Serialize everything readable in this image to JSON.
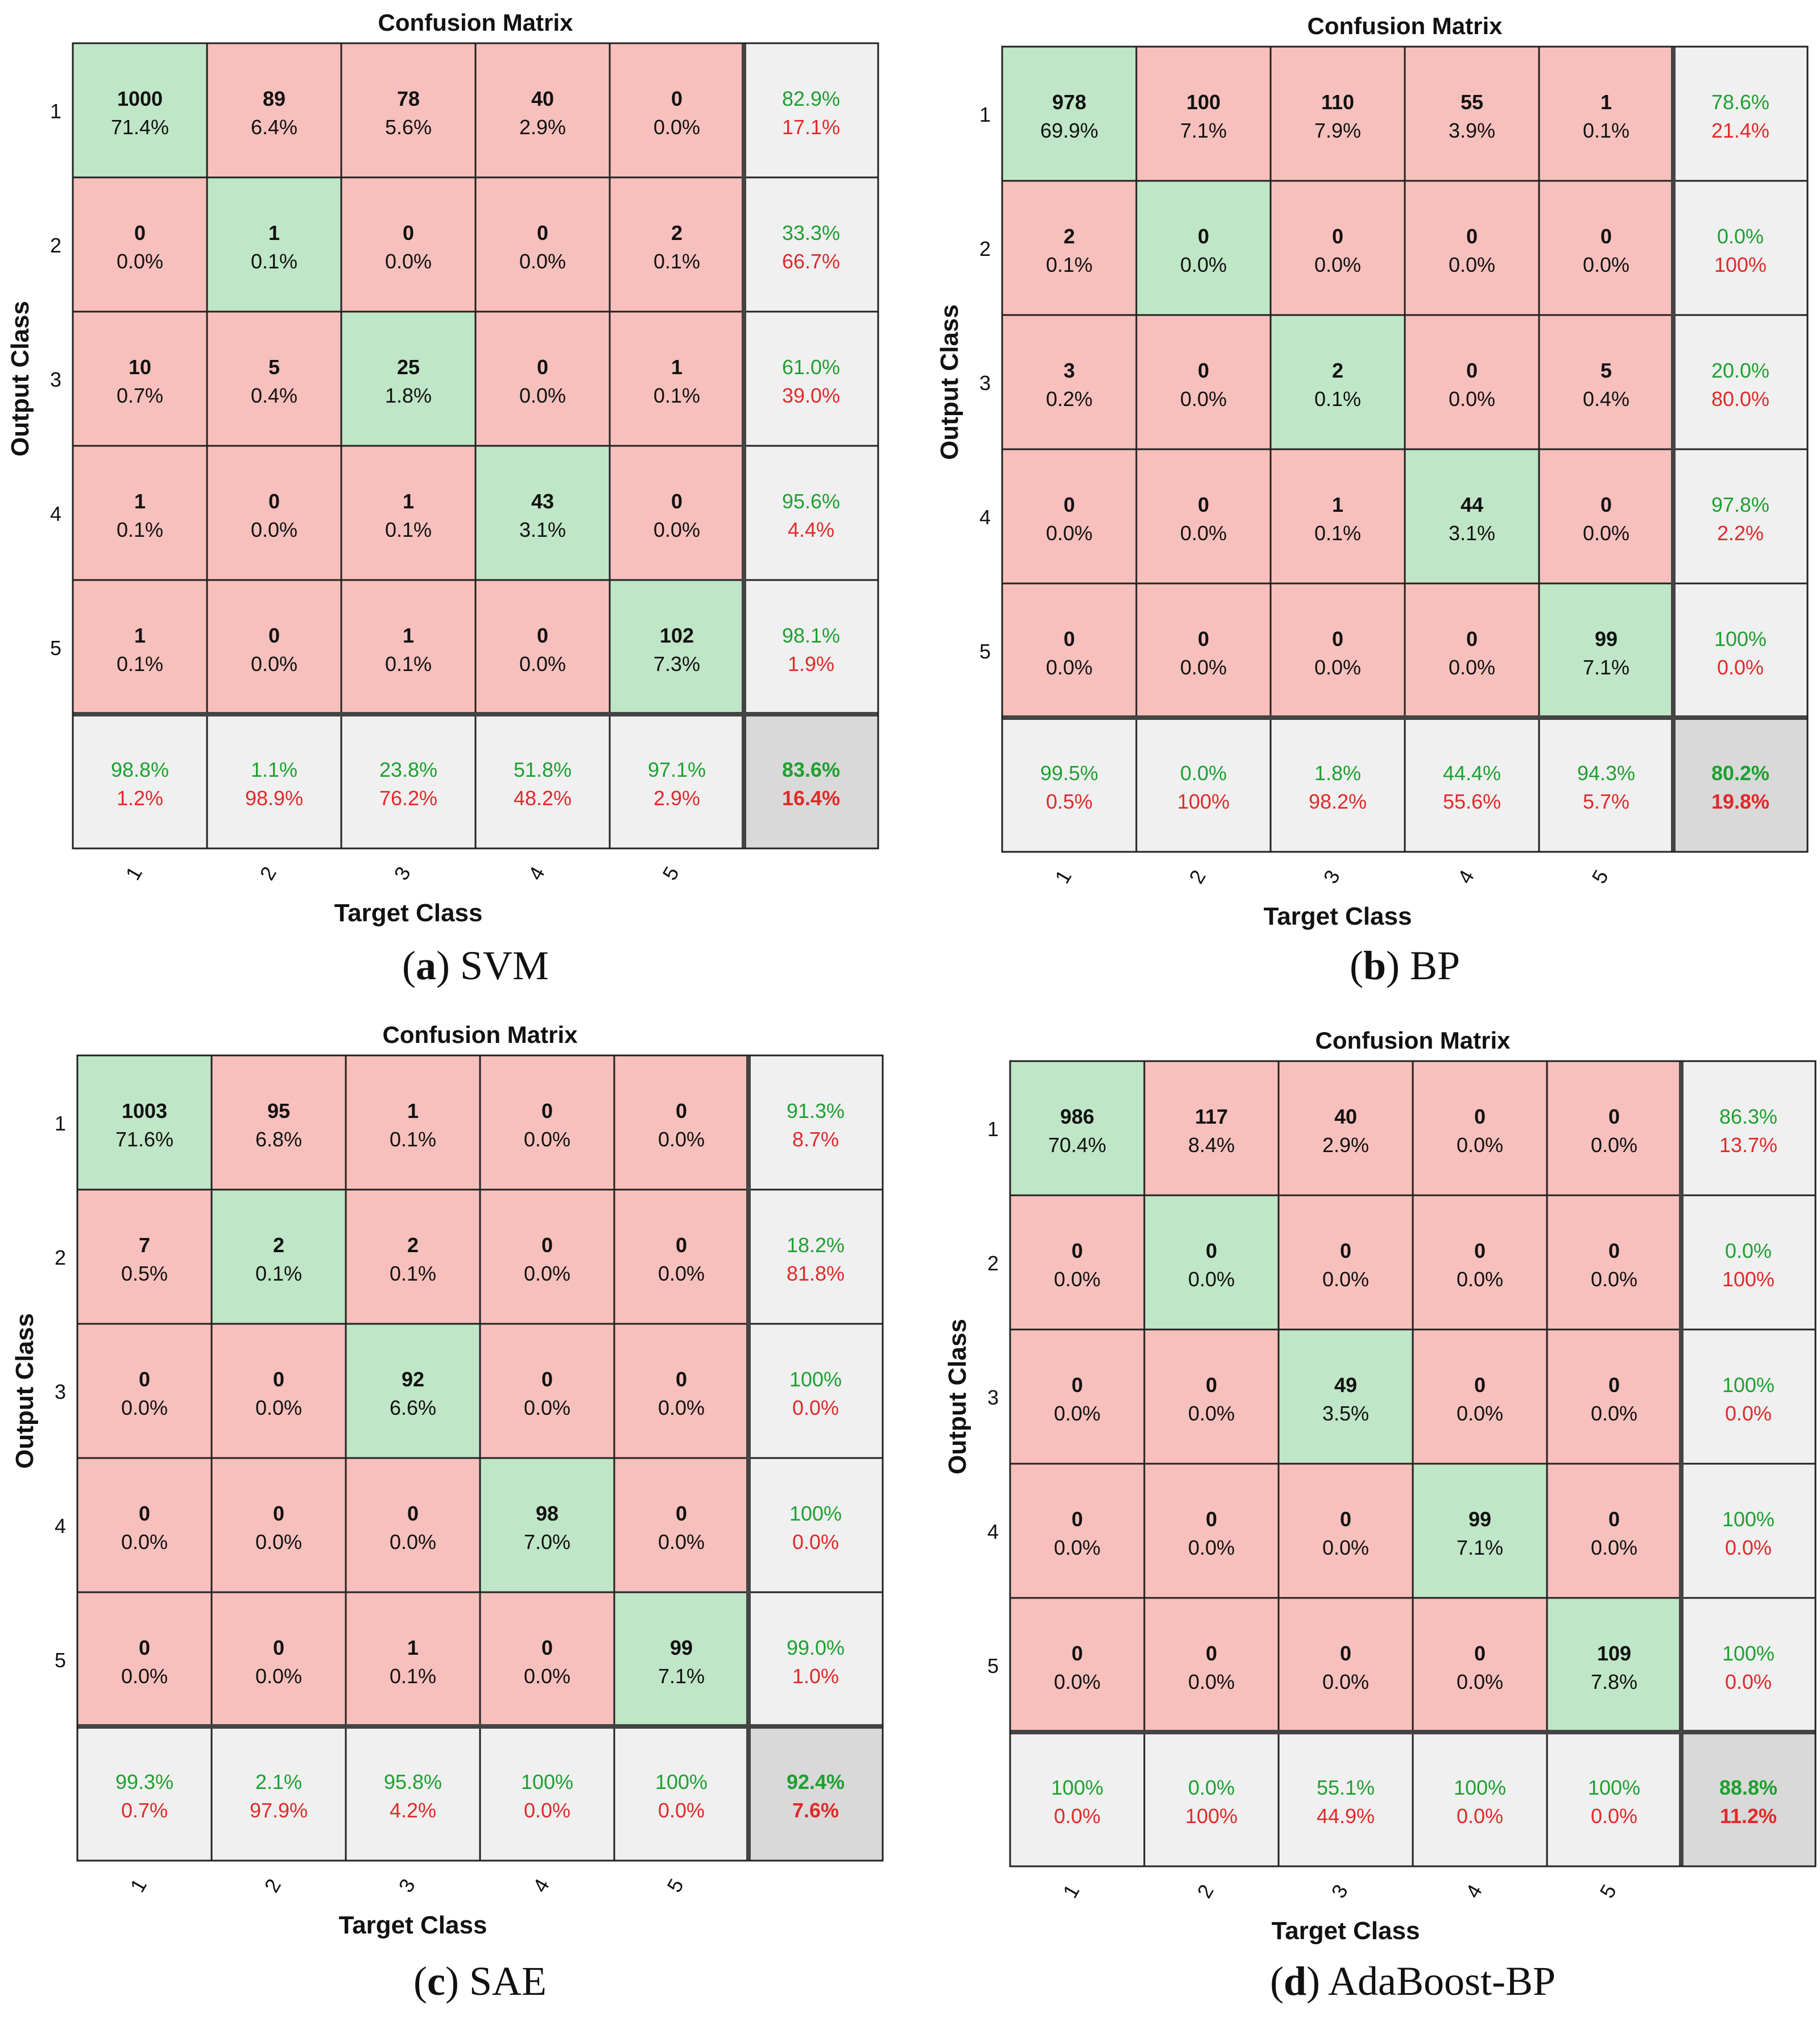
{
  "colors": {
    "correct": "#bfe6c6",
    "incorrect": "#f7c0bc",
    "summary": "#f0f0f0",
    "overall": "#d9d9d9",
    "green_text": "#1ea030",
    "red_text": "#e02a2a",
    "border": "#222222"
  },
  "chart_data": [
    {
      "type": "heatmap",
      "panel": "a",
      "title": "Confusion Matrix",
      "xlabel": "Target Class",
      "ylabel": "Output Class",
      "caption_letter": "(a)",
      "caption_letter_open": "(",
      "caption_letter_bold": "a",
      "caption_letter_close": ")",
      "caption_name": "SVM",
      "row_labels": [
        "1",
        "2",
        "3",
        "4",
        "5"
      ],
      "col_labels": [
        "1",
        "2",
        "3",
        "4",
        "5"
      ],
      "counts": [
        [
          1000,
          89,
          78,
          40,
          0
        ],
        [
          0,
          1,
          0,
          0,
          2
        ],
        [
          10,
          5,
          25,
          0,
          1
        ],
        [
          1,
          0,
          1,
          43,
          0
        ],
        [
          1,
          0,
          1,
          0,
          102
        ]
      ],
      "percents": [
        [
          "71.4%",
          "6.4%",
          "5.6%",
          "2.9%",
          "0.0%"
        ],
        [
          "0.0%",
          "0.1%",
          "0.0%",
          "0.0%",
          "0.1%"
        ],
        [
          "0.7%",
          "0.4%",
          "1.8%",
          "0.0%",
          "0.1%"
        ],
        [
          "0.1%",
          "0.0%",
          "0.1%",
          "3.1%",
          "0.0%"
        ],
        [
          "0.1%",
          "0.0%",
          "0.1%",
          "0.0%",
          "7.3%"
        ]
      ],
      "row_summary": [
        [
          "82.9%",
          "17.1%"
        ],
        [
          "33.3%",
          "66.7%"
        ],
        [
          "61.0%",
          "39.0%"
        ],
        [
          "95.6%",
          "4.4%"
        ],
        [
          "98.1%",
          "1.9%"
        ]
      ],
      "col_summary": [
        [
          "98.8%",
          "1.2%"
        ],
        [
          "1.1%",
          "98.9%"
        ],
        [
          "23.8%",
          "76.2%"
        ],
        [
          "51.8%",
          "48.2%"
        ],
        [
          "97.1%",
          "2.9%"
        ]
      ],
      "overall": [
        "83.6%",
        "16.4%"
      ]
    },
    {
      "type": "heatmap",
      "panel": "b",
      "title": "Confusion Matrix",
      "xlabel": "Target Class",
      "ylabel": "Output Class",
      "caption_letter": "(b)",
      "caption_letter_open": "(",
      "caption_letter_bold": "b",
      "caption_letter_close": ")",
      "caption_name": "BP",
      "row_labels": [
        "1",
        "2",
        "3",
        "4",
        "5"
      ],
      "col_labels": [
        "1",
        "2",
        "3",
        "4",
        "5"
      ],
      "counts": [
        [
          978,
          100,
          110,
          55,
          1
        ],
        [
          2,
          0,
          0,
          0,
          0
        ],
        [
          3,
          0,
          2,
          0,
          5
        ],
        [
          0,
          0,
          1,
          44,
          0
        ],
        [
          0,
          0,
          0,
          0,
          99
        ]
      ],
      "percents": [
        [
          "69.9%",
          "7.1%",
          "7.9%",
          "3.9%",
          "0.1%"
        ],
        [
          "0.1%",
          "0.0%",
          "0.0%",
          "0.0%",
          "0.0%"
        ],
        [
          "0.2%",
          "0.0%",
          "0.1%",
          "0.0%",
          "0.4%"
        ],
        [
          "0.0%",
          "0.0%",
          "0.1%",
          "3.1%",
          "0.0%"
        ],
        [
          "0.0%",
          "0.0%",
          "0.0%",
          "0.0%",
          "7.1%"
        ]
      ],
      "row_summary": [
        [
          "78.6%",
          "21.4%"
        ],
        [
          "0.0%",
          "100%"
        ],
        [
          "20.0%",
          "80.0%"
        ],
        [
          "97.8%",
          "2.2%"
        ],
        [
          "100%",
          "0.0%"
        ]
      ],
      "col_summary": [
        [
          "99.5%",
          "0.5%"
        ],
        [
          "0.0%",
          "100%"
        ],
        [
          "1.8%",
          "98.2%"
        ],
        [
          "44.4%",
          "55.6%"
        ],
        [
          "94.3%",
          "5.7%"
        ]
      ],
      "overall": [
        "80.2%",
        "19.8%"
      ]
    },
    {
      "type": "heatmap",
      "panel": "c",
      "title": "Confusion Matrix",
      "xlabel": "Target Class",
      "ylabel": "Output Class",
      "caption_letter": "(c)",
      "caption_letter_open": "(",
      "caption_letter_bold": "c",
      "caption_letter_close": ")",
      "caption_name": "SAE",
      "row_labels": [
        "1",
        "2",
        "3",
        "4",
        "5"
      ],
      "col_labels": [
        "1",
        "2",
        "3",
        "4",
        "5"
      ],
      "counts": [
        [
          1003,
          95,
          1,
          0,
          0
        ],
        [
          7,
          2,
          2,
          0,
          0
        ],
        [
          0,
          0,
          92,
          0,
          0
        ],
        [
          0,
          0,
          0,
          98,
          0
        ],
        [
          0,
          0,
          1,
          0,
          99
        ]
      ],
      "percents": [
        [
          "71.6%",
          "6.8%",
          "0.1%",
          "0.0%",
          "0.0%"
        ],
        [
          "0.5%",
          "0.1%",
          "0.1%",
          "0.0%",
          "0.0%"
        ],
        [
          "0.0%",
          "0.0%",
          "6.6%",
          "0.0%",
          "0.0%"
        ],
        [
          "0.0%",
          "0.0%",
          "0.0%",
          "7.0%",
          "0.0%"
        ],
        [
          "0.0%",
          "0.0%",
          "0.1%",
          "0.0%",
          "7.1%"
        ]
      ],
      "row_summary": [
        [
          "91.3%",
          "8.7%"
        ],
        [
          "18.2%",
          "81.8%"
        ],
        [
          "100%",
          "0.0%"
        ],
        [
          "100%",
          "0.0%"
        ],
        [
          "99.0%",
          "1.0%"
        ]
      ],
      "col_summary": [
        [
          "99.3%",
          "0.7%"
        ],
        [
          "2.1%",
          "97.9%"
        ],
        [
          "95.8%",
          "4.2%"
        ],
        [
          "100%",
          "0.0%"
        ],
        [
          "100%",
          "0.0%"
        ]
      ],
      "overall": [
        "92.4%",
        "7.6%"
      ]
    },
    {
      "type": "heatmap",
      "panel": "d",
      "title": "Confusion Matrix",
      "xlabel": "Target Class",
      "ylabel": "Output Class",
      "caption_letter": "(d)",
      "caption_letter_open": "(",
      "caption_letter_bold": "d",
      "caption_letter_close": ")",
      "caption_name": "AdaBoost-BP",
      "row_labels": [
        "1",
        "2",
        "3",
        "4",
        "5"
      ],
      "col_labels": [
        "1",
        "2",
        "3",
        "4",
        "5"
      ],
      "counts": [
        [
          986,
          117,
          40,
          0,
          0
        ],
        [
          0,
          0,
          0,
          0,
          0
        ],
        [
          0,
          0,
          49,
          0,
          0
        ],
        [
          0,
          0,
          0,
          99,
          0
        ],
        [
          0,
          0,
          0,
          0,
          109
        ]
      ],
      "percents": [
        [
          "70.4%",
          "8.4%",
          "2.9%",
          "0.0%",
          "0.0%"
        ],
        [
          "0.0%",
          "0.0%",
          "0.0%",
          "0.0%",
          "0.0%"
        ],
        [
          "0.0%",
          "0.0%",
          "3.5%",
          "0.0%",
          "0.0%"
        ],
        [
          "0.0%",
          "0.0%",
          "0.0%",
          "7.1%",
          "0.0%"
        ],
        [
          "0.0%",
          "0.0%",
          "0.0%",
          "0.0%",
          "7.8%"
        ]
      ],
      "row_summary": [
        [
          "86.3%",
          "13.7%"
        ],
        [
          "0.0%",
          "100%"
        ],
        [
          "100%",
          "0.0%"
        ],
        [
          "100%",
          "0.0%"
        ],
        [
          "100%",
          "0.0%"
        ]
      ],
      "col_summary": [
        [
          "100%",
          "0.0%"
        ],
        [
          "0.0%",
          "100%"
        ],
        [
          "55.1%",
          "44.9%"
        ],
        [
          "100%",
          "0.0%"
        ],
        [
          "100%",
          "0.0%"
        ]
      ],
      "overall": [
        "88.8%",
        "11.2%"
      ]
    }
  ]
}
